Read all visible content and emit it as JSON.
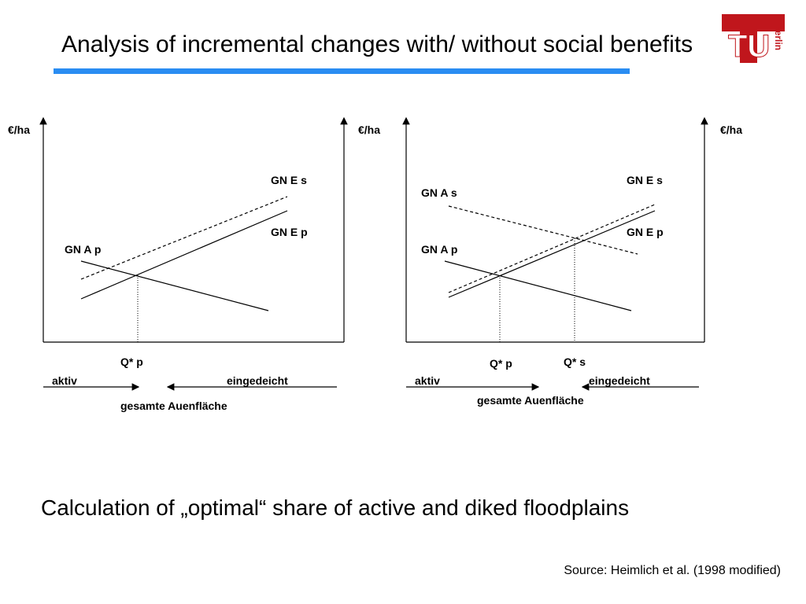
{
  "header": {
    "title": "Analysis of incremental changes with/ without social benefits",
    "logo": {
      "letters": "TU",
      "name": "Berlin"
    }
  },
  "diagrams": [
    {
      "y_axis_left": "€/ha",
      "y_axis_right": "€/ha",
      "curves": [
        "GN E s",
        "GN E p",
        "GN A p"
      ],
      "q_labels": [
        "Q* p"
      ],
      "left_arrow": "aktiv",
      "right_arrow": "eingedeicht",
      "x_label": "gesamte Auenfläche"
    },
    {
      "y_axis_right": "€/ha",
      "curves": [
        "GN A s",
        "GN E s",
        "GN E p",
        "GN A p"
      ],
      "q_labels": [
        "Q* p",
        "Q* s"
      ],
      "left_arrow": "aktiv",
      "right_arrow": "eingedeicht",
      "x_label": "gesamte Auenfläche"
    }
  ],
  "caption": "Calculation of „optimal“ share of active and diked floodplains",
  "source": "Source: Heimlich et al. (1998 modified)"
}
